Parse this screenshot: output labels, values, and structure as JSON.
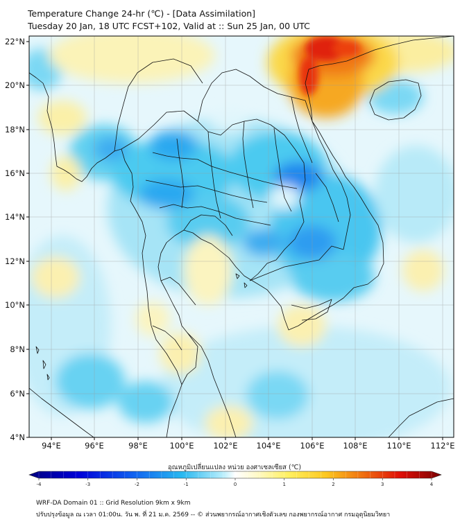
{
  "title_line1": "Temperature Change 24-hr (℃) - [Data Assimilation]",
  "title_line2": "Tuesday 20 Jan, 18 UTC FCST+102, Valid at :: Sun 25 Jan, 00 UTC",
  "lat_labels": [
    "22°N",
    "20°N",
    "18°N",
    "16°N",
    "14°N",
    "12°N",
    "10°N",
    "8°N",
    "6°N",
    "4°N"
  ],
  "lon_labels": [
    "94°E",
    "96°E",
    "98°E",
    "100°E",
    "102°E",
    "104°E",
    "106°E",
    "108°E",
    "110°E",
    "112°E"
  ],
  "colorbar": {
    "label": "อุณหภูมิเปลี่ยนแปลง หน่วย องศาเซลเซียส (℃)",
    "ticks": [
      "-4",
      "-3",
      "-2",
      "-1",
      "0",
      "1",
      "2",
      "3",
      "4"
    ],
    "min": -4,
    "max": 4
  },
  "footer_line1": "WRF-DA Domain 01 :: Grid Resolution 9km x 9km",
  "footer_line2": "ปรับปรุงข้อมูล ณ เวลา 01:00น. วัน พ. ที่ 21 ม.ค. 2569 -- © ส่วนพยากรณ์อากาศเชิงตัวเลข กองพยากรณ์อากาศ กรมอุตุนิยมวิทยา",
  "colors": {
    "background": "#ffffff",
    "cold_strong": "#1e78ee",
    "cold": "#3cc8f0",
    "cool": "#a8e6f8",
    "neutral": "#f4fafc",
    "warm": "#fbf3b4",
    "warm_strong": "#fbd040",
    "hot": "#f08018",
    "very_hot": "#e02010"
  }
}
